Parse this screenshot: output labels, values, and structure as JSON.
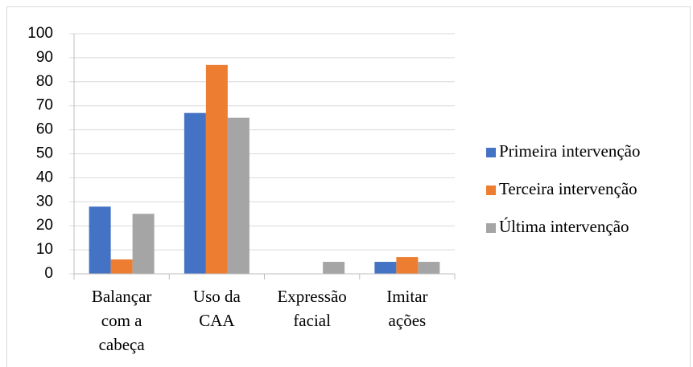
{
  "chart_data": {
    "type": "bar",
    "categories": [
      [
        "Balançar",
        "com a",
        "cabeça"
      ],
      [
        "Uso da",
        "CAA"
      ],
      [
        "Expressão",
        "facial"
      ],
      [
        "Imitar",
        "ações"
      ]
    ],
    "series": [
      {
        "name": "Primeira intervenção",
        "color": "#4472c4",
        "values": [
          28,
          67,
          0,
          5
        ]
      },
      {
        "name": "Terceira intervenção",
        "color": "#ed7d31",
        "values": [
          6,
          87,
          0,
          7
        ]
      },
      {
        "name": "Última intervenção",
        "color": "#a5a5a5",
        "values": [
          25,
          65,
          5,
          5
        ]
      }
    ],
    "ylim": [
      0,
      100
    ],
    "yticks": [
      0,
      10,
      20,
      30,
      40,
      50,
      60,
      70,
      80,
      90,
      100
    ],
    "grid": true,
    "legend": "right"
  }
}
